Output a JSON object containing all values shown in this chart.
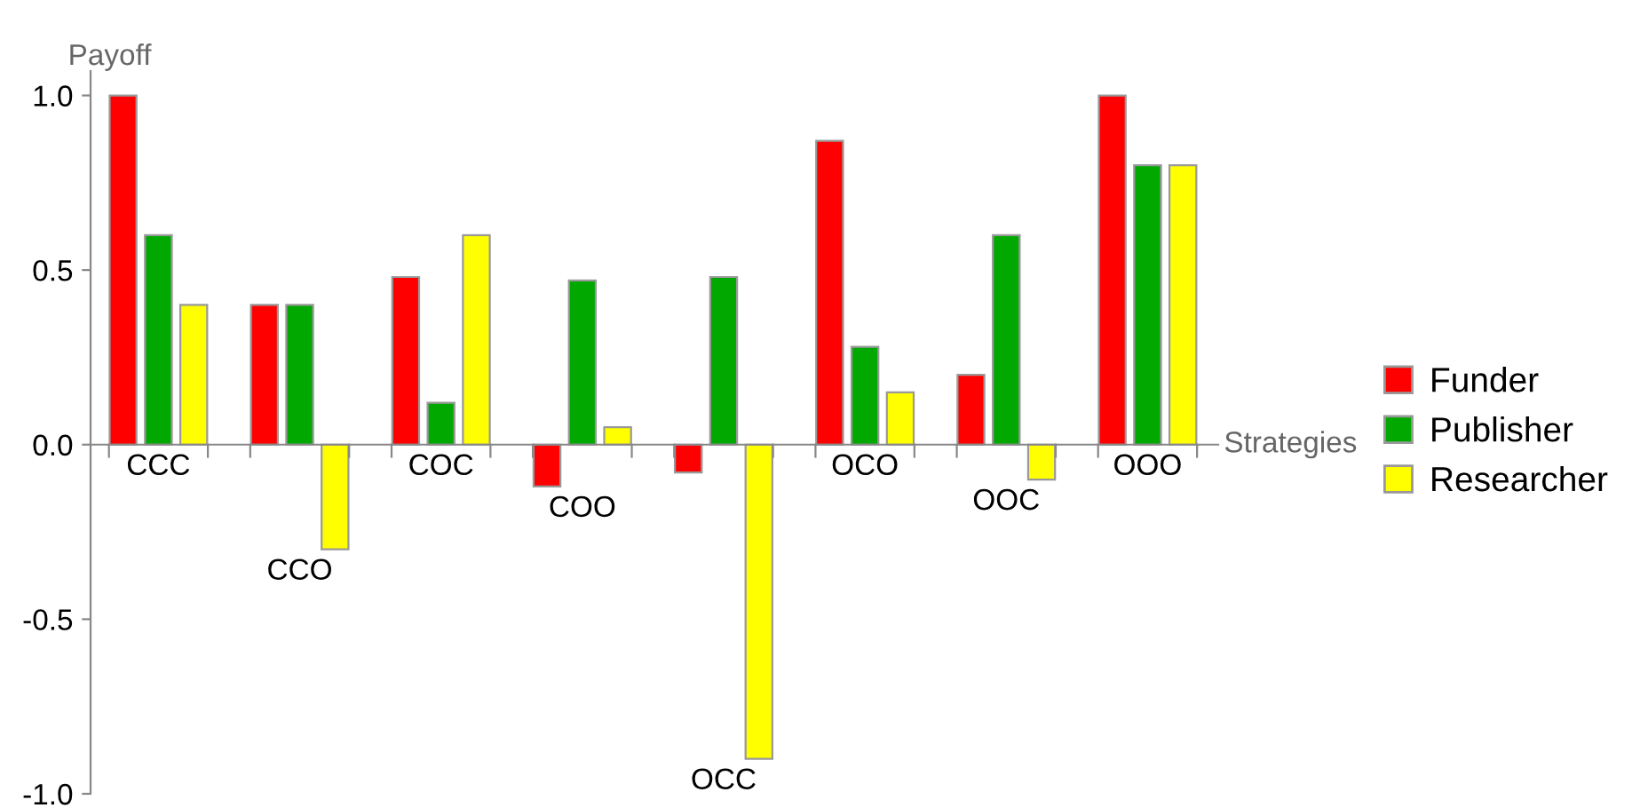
{
  "chart_data": {
    "type": "bar",
    "ylabel": "Payoff",
    "xlabel": "Strategies",
    "categories": [
      "CCC",
      "CCO",
      "COC",
      "COO",
      "OCC",
      "OCO",
      "OOC",
      "OOO"
    ],
    "series": [
      {
        "name": "Funder",
        "color": "#ff0000",
        "values": [
          1.0,
          0.4,
          0.48,
          -0.12,
          -0.08,
          0.87,
          0.2,
          1.0
        ]
      },
      {
        "name": "Publisher",
        "color": "#00a800",
        "values": [
          0.6,
          0.4,
          0.12,
          0.47,
          0.48,
          0.28,
          0.6,
          0.8
        ]
      },
      {
        "name": "Researcher",
        "color": "#ffff00",
        "values": [
          0.4,
          -0.3,
          0.6,
          0.05,
          -0.9,
          0.15,
          -0.1,
          0.8
        ]
      }
    ],
    "ylim": [
      -1.0,
      1.07
    ],
    "yticks": [
      {
        "value": -1.0,
        "label": "-1.0"
      },
      {
        "value": -0.5,
        "label": "-0.5"
      },
      {
        "value": 0.0,
        "label": "0.0"
      },
      {
        "value": 0.5,
        "label": "0.5"
      },
      {
        "value": 1.0,
        "label": "1.0"
      }
    ],
    "grid": false,
    "legend": "right"
  }
}
